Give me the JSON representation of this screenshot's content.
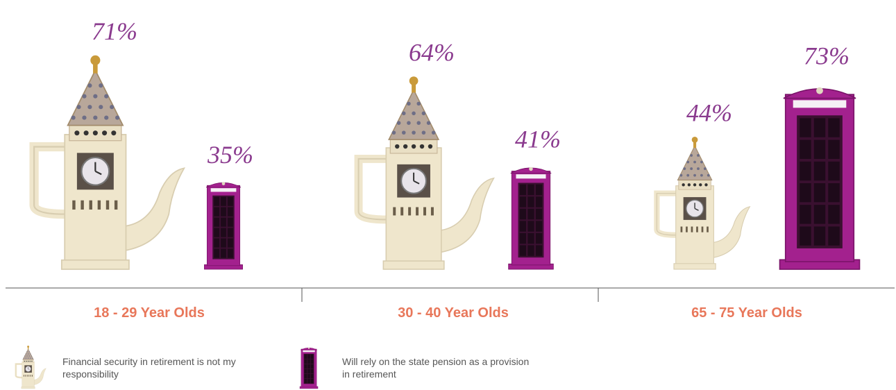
{
  "chart_data": {
    "type": "pictograph",
    "categories": [
      "18 - 29 Year Olds",
      "30 - 40 Year Olds",
      "65 - 75 Year Olds"
    ],
    "series": [
      {
        "name": "Financial security in retirement is not my responsibility",
        "color": "#efe6cc",
        "values": [
          71,
          64,
          44
        ],
        "value_labels": [
          "71%",
          "64%",
          "44%"
        ]
      },
      {
        "name": "Will rely on the state pension as a provision in retirement",
        "color": "#a3218e",
        "values": [
          35,
          41,
          73
        ],
        "value_labels": [
          "35%",
          "41%",
          "73%"
        ]
      }
    ]
  }
}
